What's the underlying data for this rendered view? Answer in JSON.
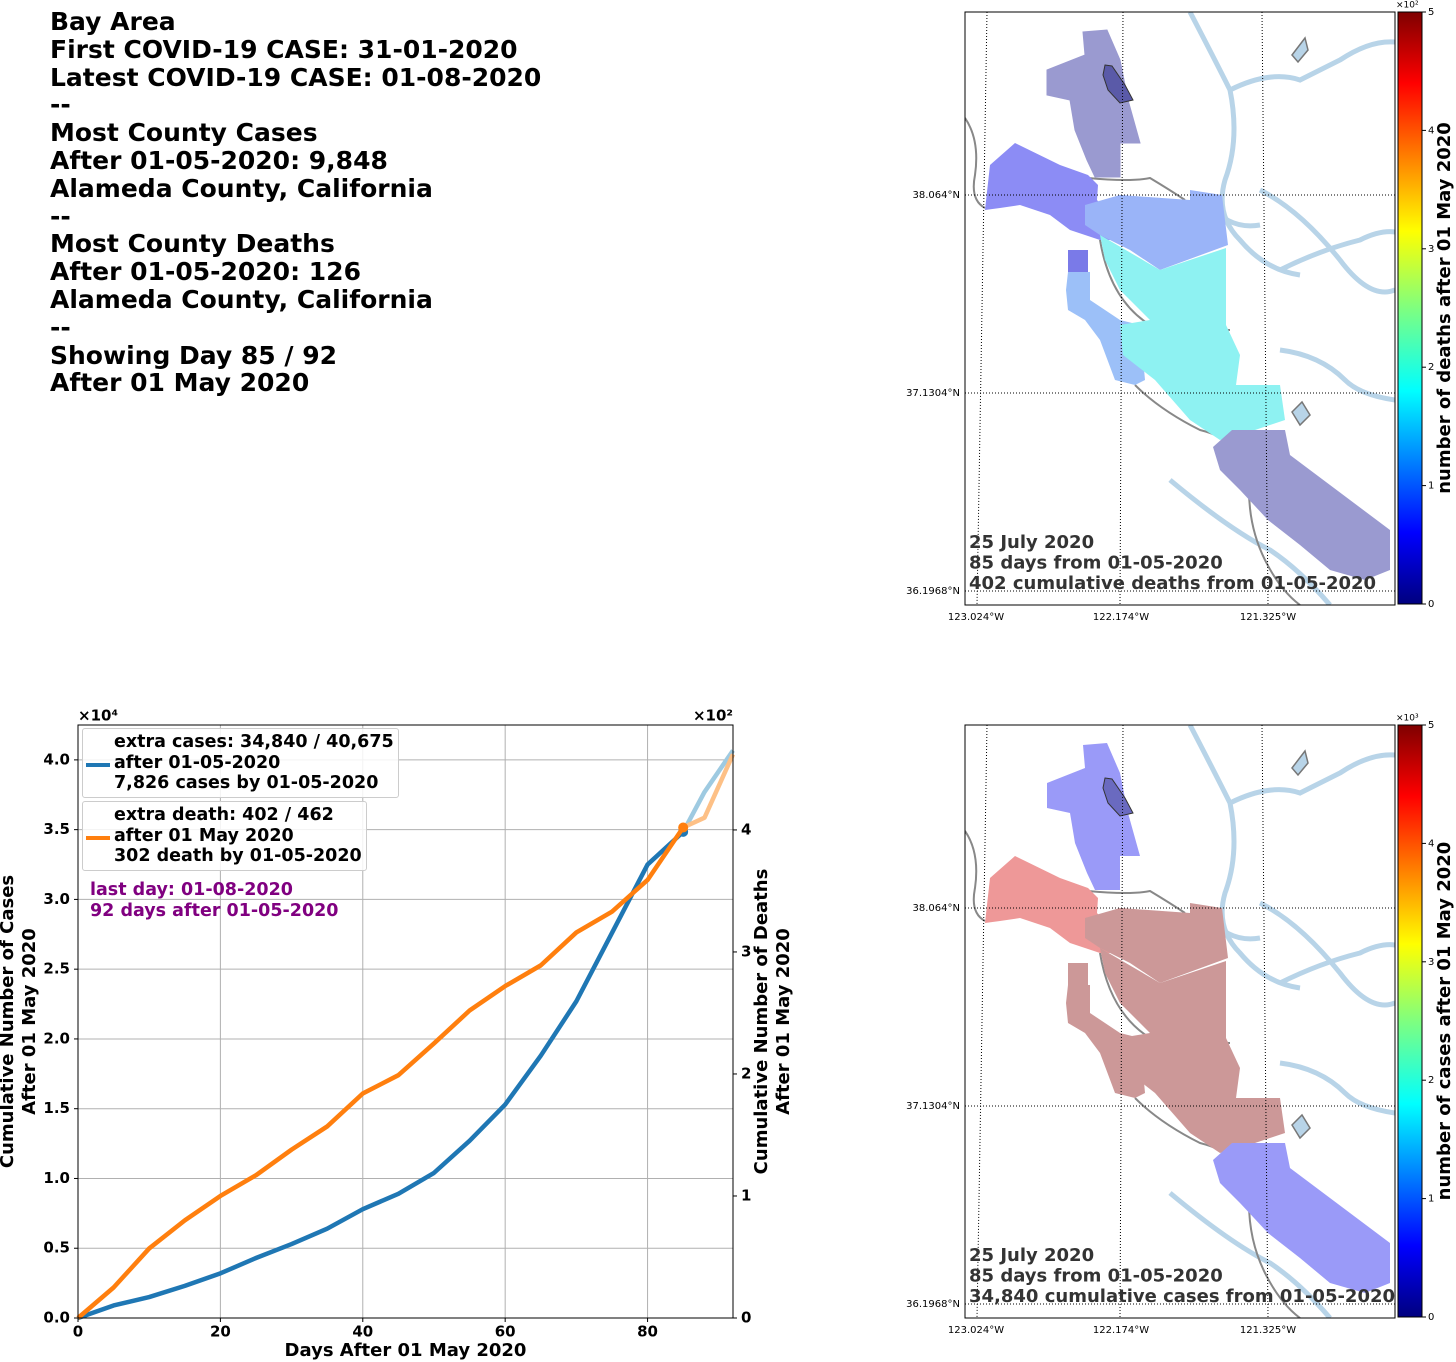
{
  "info": {
    "lines": [
      "Bay Area",
      "First COVID-19 CASE: 31-01-2020",
      "Latest COVID-19 CASE: 01-08-2020",
      "--",
      "Most County Cases",
      "After 01-05-2020: 9,848",
      "Alameda County, California",
      "--",
      "Most County Deaths",
      "After 01-05-2020: 126",
      "Alameda County, California",
      "--",
      "Showing Day 85 / 92",
      "After 01 May 2020"
    ]
  },
  "chart_data": {
    "type": "line",
    "x": [
      0,
      5,
      10,
      15,
      20,
      25,
      30,
      35,
      40,
      45,
      50,
      55,
      60,
      65,
      70,
      75,
      80,
      85,
      88,
      92
    ],
    "xlim": [
      0,
      92
    ],
    "xticks": [
      0,
      20,
      40,
      60,
      80
    ],
    "xlabel": "Days After 01 May 2020",
    "ylabel": [
      "Cumulative Number of Cases",
      "After 01 May 2020"
    ],
    "y2label": [
      "Cumulative Number of Deaths",
      "After 01 May 2020"
    ],
    "ylim": [
      0,
      42500
    ],
    "yticks": [
      {
        "value": 0,
        "label": "0.0"
      },
      {
        "value": 5000,
        "label": "0.5"
      },
      {
        "value": 10000,
        "label": "1.0"
      },
      {
        "value": 15000,
        "label": "1.5"
      },
      {
        "value": 20000,
        "label": "2.0"
      },
      {
        "value": 25000,
        "label": "2.5"
      },
      {
        "value": 30000,
        "label": "3.0"
      },
      {
        "value": 35000,
        "label": "3.5"
      },
      {
        "value": 40000,
        "label": "4.0"
      }
    ],
    "y_offset_label": "×10⁴",
    "y2lim": [
      0,
      486
    ],
    "y2ticks": [
      0,
      {
        "value": 100,
        "label": "1"
      },
      {
        "value": 200,
        "label": "2"
      },
      {
        "value": 300,
        "label": "3"
      },
      {
        "value": 400,
        "label": "4"
      }
    ],
    "y2_offset_label": "×10²",
    "grid": true,
    "highlight_x": 85,
    "series": [
      {
        "name": "extra cases: 34,840 / 40,675\nafter 01-05-2020\n7,826 cases by 01-05-2020",
        "color": "#1f77b4",
        "faded_color": "#9ecae1",
        "values": [
          0,
          900,
          1500,
          2300,
          3200,
          4300,
          5300,
          6400,
          7800,
          8900,
          10400,
          12700,
          15300,
          18800,
          22700,
          27600,
          32500,
          34840,
          37700,
          40675
        ]
      },
      {
        "name": "extra death: 402 / 462\nafter 01 May 2020\n302 death by 01-05-2020",
        "color": "#ff7f0e",
        "faded_color": "#fdc086",
        "axis": "y2",
        "values": [
          0,
          25,
          57,
          80,
          100,
          117,
          138,
          157,
          184,
          199,
          225,
          252,
          272,
          289,
          316,
          333,
          359,
          402,
          410,
          462
        ]
      }
    ],
    "annotations": [
      "last day: 01-08-2020",
      "92 days after 01-05-2020"
    ],
    "annotation_color": "#800080"
  },
  "maps": [
    {
      "lat_labels": [
        "38.064°N",
        "37.1304°N",
        "36.1968°N"
      ],
      "lon_labels": [
        "123.024°W",
        "122.174°W",
        "121.325°W"
      ],
      "annotation": [
        "25 July 2020",
        "85 days from 01-05-2020",
        "402 cumulative deaths from 01-05-2020"
      ],
      "colorbar": {
        "label": "number of deaths after 01 May 2020",
        "clim": [
          0,
          500
        ],
        "offset_label": "×10²",
        "ticks": [
          0,
          {
            "value": 100,
            "label": "1"
          },
          {
            "value": 200,
            "label": "2"
          },
          {
            "value": 300,
            "label": "3"
          },
          {
            "value": 400,
            "label": "4"
          },
          {
            "value": 500,
            "label": "5"
          }
        ]
      }
    },
    {
      "lat_labels": [
        "38.064°N",
        "37.1304°N",
        "36.1968°N"
      ],
      "lon_labels": [
        "123.024°W",
        "122.174°W",
        "121.325°W"
      ],
      "annotation": [
        "25 July 2020",
        "85 days from 01-05-2020",
        "34,840 cumulative cases from 01-05-2020"
      ],
      "colorbar": {
        "label": "number of cases after 01 May 2020",
        "clim": [
          0,
          5000
        ],
        "offset_label": "×10³",
        "ticks": [
          0,
          {
            "value": 1000,
            "label": "1"
          },
          {
            "value": 2000,
            "label": "2"
          },
          {
            "value": 3000,
            "label": "3"
          },
          {
            "value": 4000,
            "label": "4"
          },
          {
            "value": 5000,
            "label": "5"
          }
        ]
      }
    }
  ]
}
